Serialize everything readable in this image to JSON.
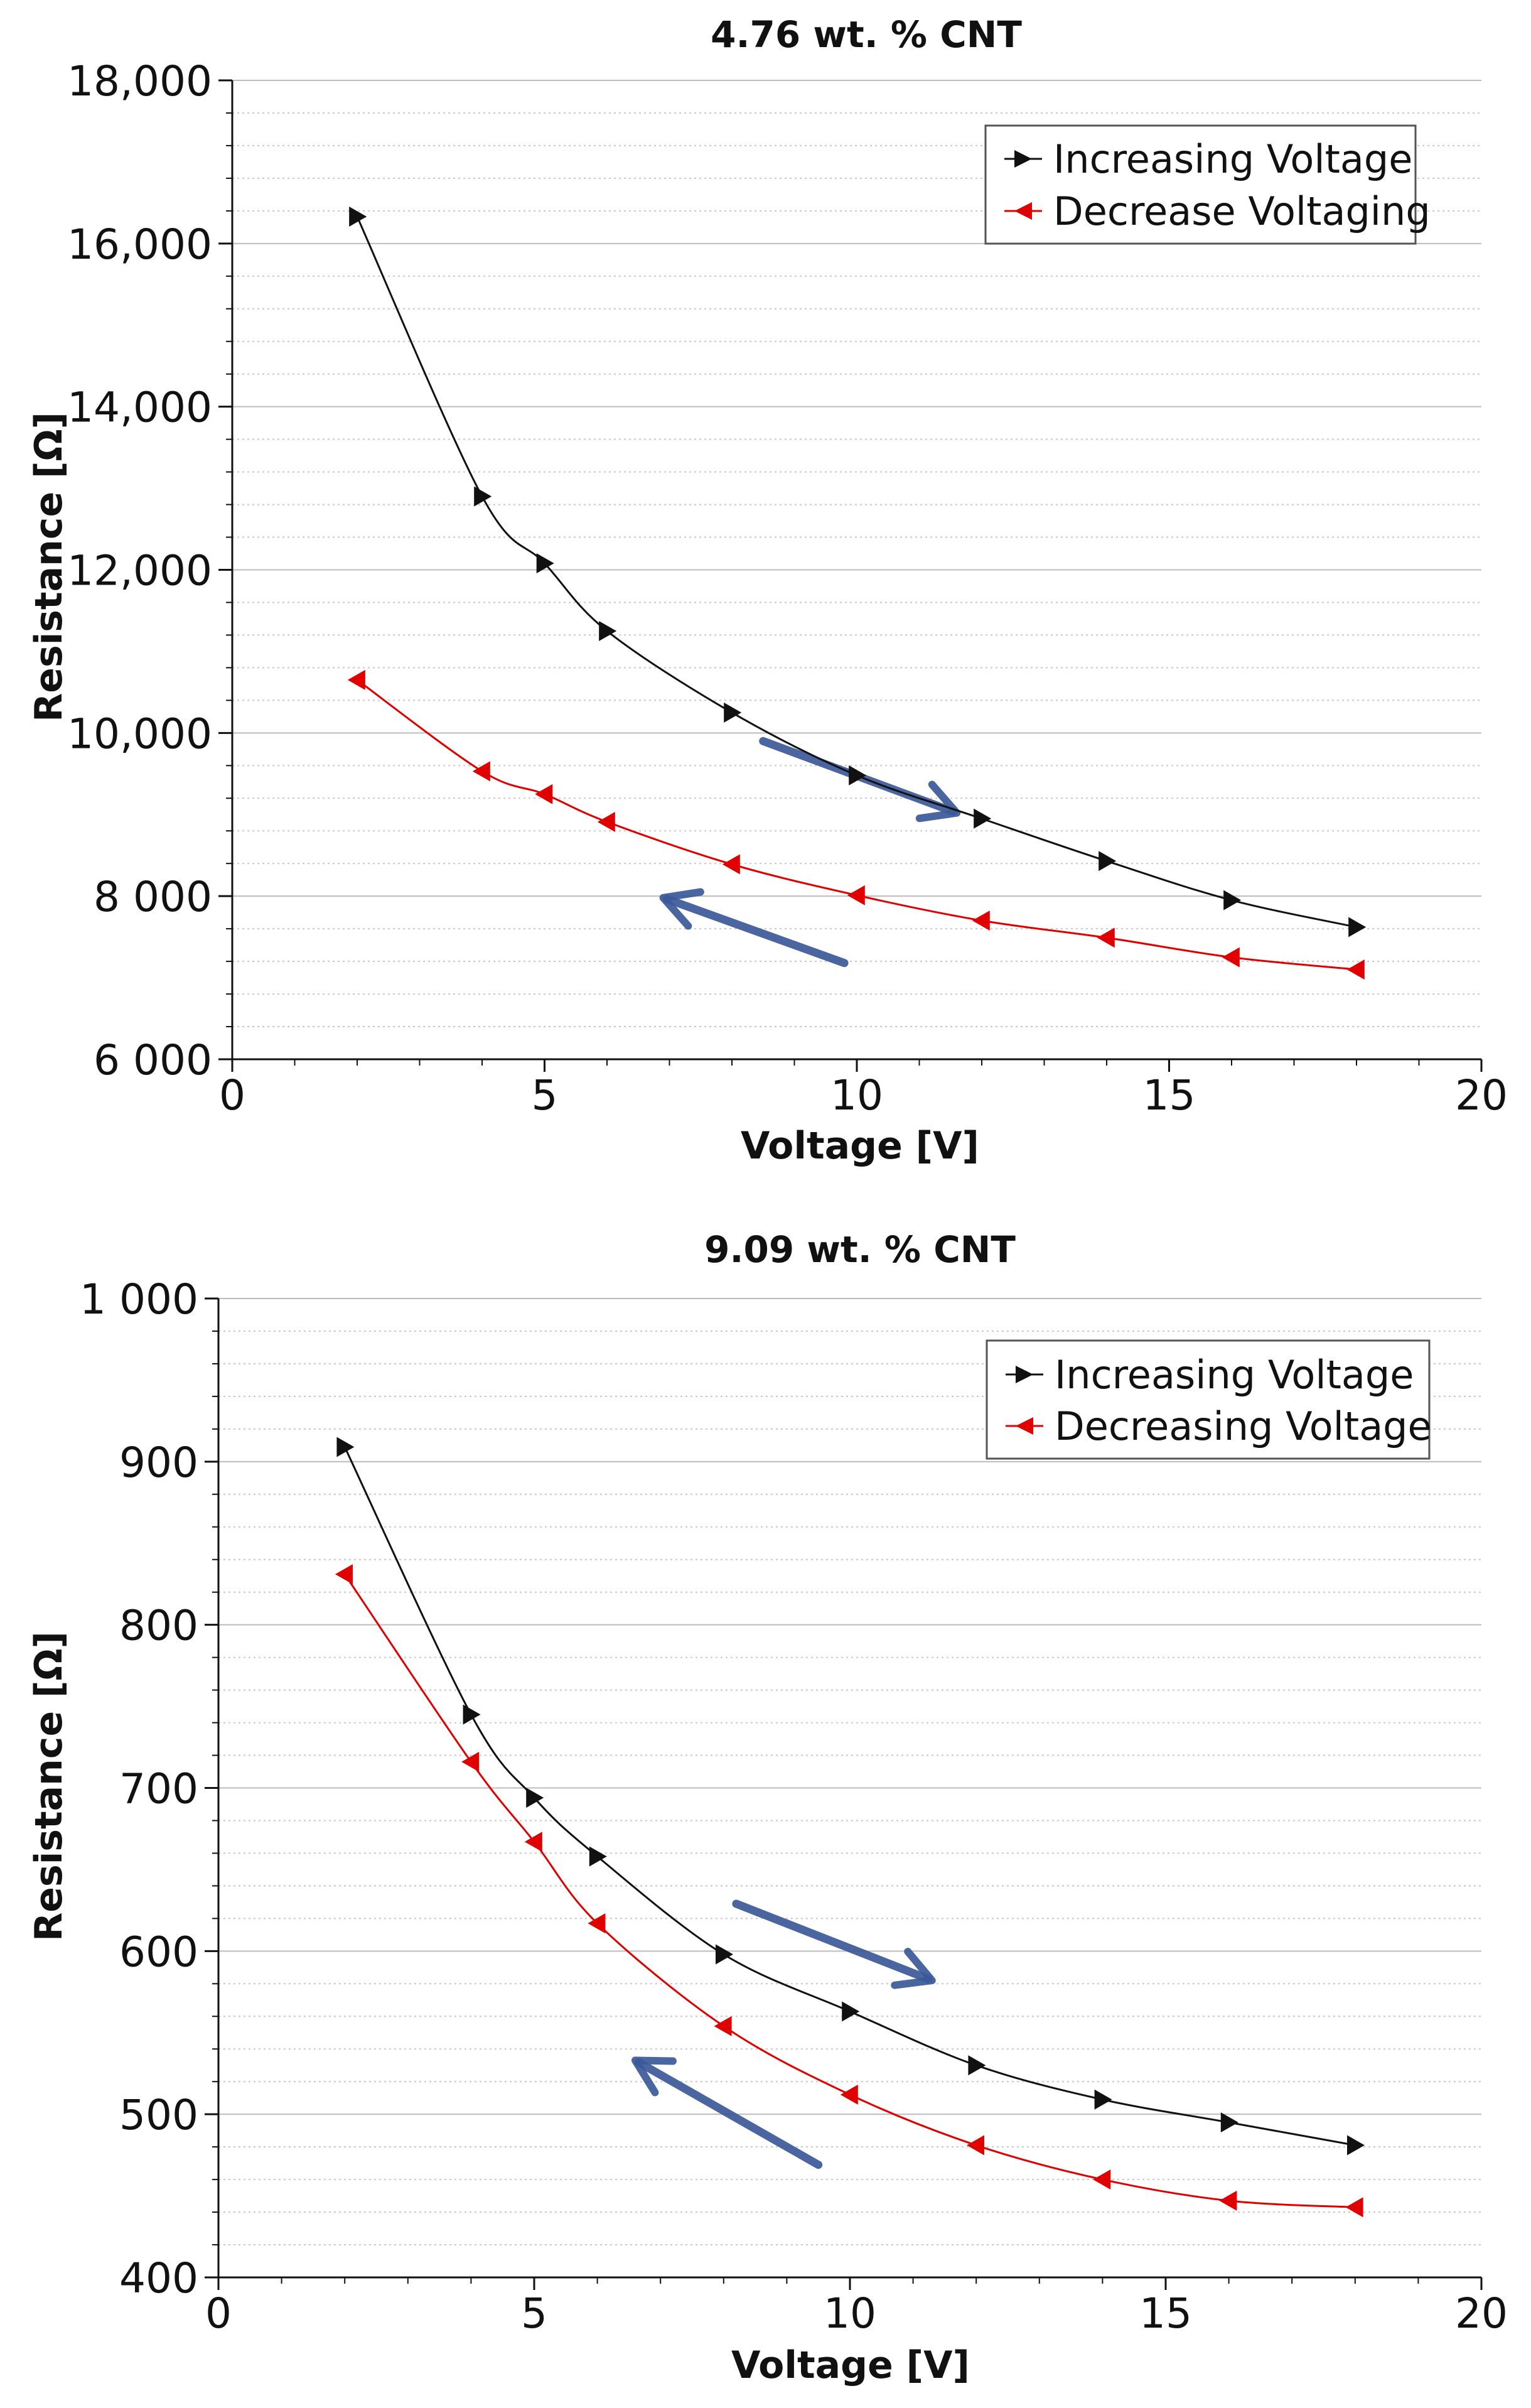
{
  "chart_data": [
    {
      "type": "line",
      "title": "4.76 wt. % CNT",
      "xlabel": "Voltage [V]",
      "ylabel": "Resistance [Ω]",
      "xlim": [
        0,
        20
      ],
      "ylim": [
        6000,
        18000
      ],
      "x_ticks": [
        0,
        5,
        10,
        15,
        20
      ],
      "x_tick_labels": [
        "0",
        "5",
        "10",
        "15",
        "20"
      ],
      "y_ticks": [
        6000,
        8000,
        10000,
        12000,
        14000,
        16000,
        18000
      ],
      "y_tick_labels": [
        "6 000",
        "8 000",
        "10,000",
        "12,000",
        "14,000",
        "16,000",
        "18,000"
      ],
      "grid": true,
      "legend_position": "top-right",
      "series": [
        {
          "name": "Increasing Voltage",
          "color": "#111111",
          "marker": "triangle-right",
          "x": [
            2,
            4,
            5,
            6,
            8,
            10,
            12,
            14,
            16,
            18
          ],
          "y": [
            16330,
            12900,
            12080,
            11250,
            10250,
            9480,
            8950,
            8430,
            7950,
            7620
          ]
        },
        {
          "name": "Decrease Voltaging",
          "color": "#e00000",
          "marker": "triangle-left",
          "x": [
            2,
            4,
            5,
            6,
            8,
            10,
            12,
            14,
            16,
            18
          ],
          "y": [
            10650,
            9530,
            9250,
            8910,
            8390,
            8010,
            7700,
            7490,
            7250,
            7100
          ]
        }
      ],
      "annotations": [
        {
          "type": "arrow",
          "direction": "down-right",
          "color": "#3b5998",
          "from": [
            8.5,
            9900
          ],
          "to": [
            11.6,
            9020
          ]
        },
        {
          "type": "arrow",
          "direction": "up-left",
          "color": "#3b5998",
          "from": [
            9.8,
            7180
          ],
          "to": [
            6.9,
            7980
          ]
        }
      ]
    },
    {
      "type": "line",
      "title": "9.09 wt. % CNT",
      "xlabel": "Voltage [V]",
      "ylabel": "Resistance [Ω]",
      "xlim": [
        0,
        20
      ],
      "ylim": [
        400,
        1000
      ],
      "x_ticks": [
        0,
        5,
        10,
        15,
        20
      ],
      "x_tick_labels": [
        "0",
        "5",
        "10",
        "15",
        "20"
      ],
      "y_ticks": [
        400,
        500,
        600,
        700,
        800,
        900,
        1000
      ],
      "y_tick_labels": [
        "400",
        "500",
        "600",
        "700",
        "800",
        "900",
        "1 000"
      ],
      "grid": true,
      "legend_position": "top-right",
      "series": [
        {
          "name": "Increasing Voltage",
          "color": "#111111",
          "marker": "triangle-right",
          "x": [
            2,
            4,
            5,
            6,
            8,
            10,
            12,
            14,
            16,
            18
          ],
          "y": [
            909,
            745,
            694,
            658,
            598,
            563,
            530,
            509,
            495,
            481
          ]
        },
        {
          "name": "Decreasing Voltage",
          "color": "#e00000",
          "marker": "triangle-left",
          "x": [
            2,
            4,
            5,
            6,
            8,
            10,
            12,
            14,
            16,
            18
          ],
          "y": [
            831,
            716,
            667,
            617,
            554,
            512,
            481,
            460,
            447,
            443
          ]
        }
      ],
      "annotations": [
        {
          "type": "arrow",
          "direction": "down-right",
          "color": "#3b5998",
          "from": [
            8.2,
            629
          ],
          "to": [
            11.3,
            582
          ]
        },
        {
          "type": "arrow",
          "direction": "up-left",
          "color": "#3b5998",
          "from": [
            9.5,
            469
          ],
          "to": [
            6.6,
            533
          ]
        }
      ]
    }
  ]
}
